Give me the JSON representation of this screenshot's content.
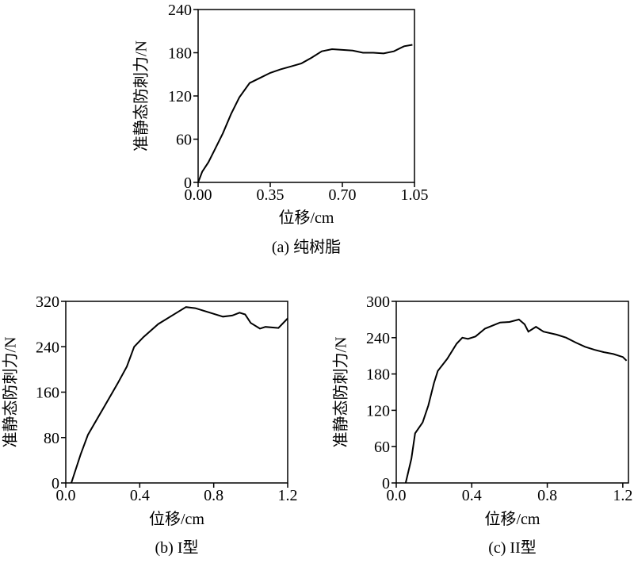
{
  "chart_data": [
    {
      "type": "line",
      "title": "(a) 纯树脂",
      "x_label": "位移/cm",
      "y_label": "准静态防刺力/N",
      "color": "#000000",
      "x": [
        0,
        0.02,
        0.05,
        0.08,
        0.12,
        0.16,
        0.2,
        0.25,
        0.3,
        0.35,
        0.4,
        0.45,
        0.5,
        0.55,
        0.6,
        0.65,
        0.7,
        0.75,
        0.8,
        0.85,
        0.9,
        0.95,
        1.0,
        1.04
      ],
      "values": [
        0,
        15,
        28,
        45,
        68,
        95,
        118,
        138,
        145,
        152,
        157,
        161,
        165,
        173,
        182,
        185,
        184,
        183,
        180,
        180,
        179,
        182,
        189,
        191
      ],
      "xlim": [
        0,
        1.05
      ],
      "ylim": [
        0,
        240
      ],
      "xticks": [
        {
          "value": 0,
          "label": "0.00"
        },
        0.35,
        {
          "value": 0.7,
          "label": "0.70"
        },
        1.05
      ],
      "yticks": [
        0,
        60,
        120,
        180,
        240
      ]
    },
    {
      "type": "line",
      "title": "(b) I型",
      "x_label": "位移/cm",
      "y_label": "准静态防刺力/N",
      "color": "#000000",
      "x": [
        0.03,
        0.08,
        0.12,
        0.2,
        0.28,
        0.33,
        0.37,
        0.42,
        0.5,
        0.6,
        0.65,
        0.7,
        0.78,
        0.85,
        0.9,
        0.94,
        0.97,
        1.0,
        1.05,
        1.08,
        1.15,
        1.2
      ],
      "values": [
        0,
        50,
        85,
        130,
        175,
        205,
        240,
        257,
        280,
        300,
        310,
        308,
        300,
        293,
        295,
        300,
        297,
        282,
        272,
        275,
        273,
        290
      ],
      "xlim": [
        0,
        1.2
      ],
      "ylim": [
        0,
        320
      ],
      "xticks": [
        {
          "value": 0,
          "label": "0.0"
        },
        0.4,
        0.8,
        1.2
      ],
      "yticks": [
        0,
        80,
        160,
        240,
        320
      ]
    },
    {
      "type": "line",
      "title": "(c) II型",
      "x_label": "位移/cm",
      "y_label": "准静态防刺力/N",
      "color": "#000000",
      "x": [
        0.05,
        0.08,
        0.1,
        0.14,
        0.17,
        0.2,
        0.22,
        0.27,
        0.32,
        0.35,
        0.38,
        0.42,
        0.47,
        0.55,
        0.6,
        0.65,
        0.68,
        0.7,
        0.74,
        0.78,
        0.85,
        0.9,
        0.95,
        1.0,
        1.05,
        1.1,
        1.15,
        1.2,
        1.22
      ],
      "values": [
        0,
        40,
        82,
        100,
        128,
        165,
        185,
        205,
        230,
        240,
        238,
        242,
        255,
        265,
        266,
        270,
        262,
        250,
        258,
        250,
        245,
        240,
        232,
        225,
        220,
        216,
        213,
        208,
        202
      ],
      "xlim": [
        0,
        1.23
      ],
      "ylim": [
        0,
        300
      ],
      "xticks": [
        {
          "value": 0,
          "label": "0.0"
        },
        0.4,
        0.8,
        1.2
      ],
      "yticks": [
        0,
        60,
        120,
        180,
        240,
        300
      ]
    }
  ]
}
